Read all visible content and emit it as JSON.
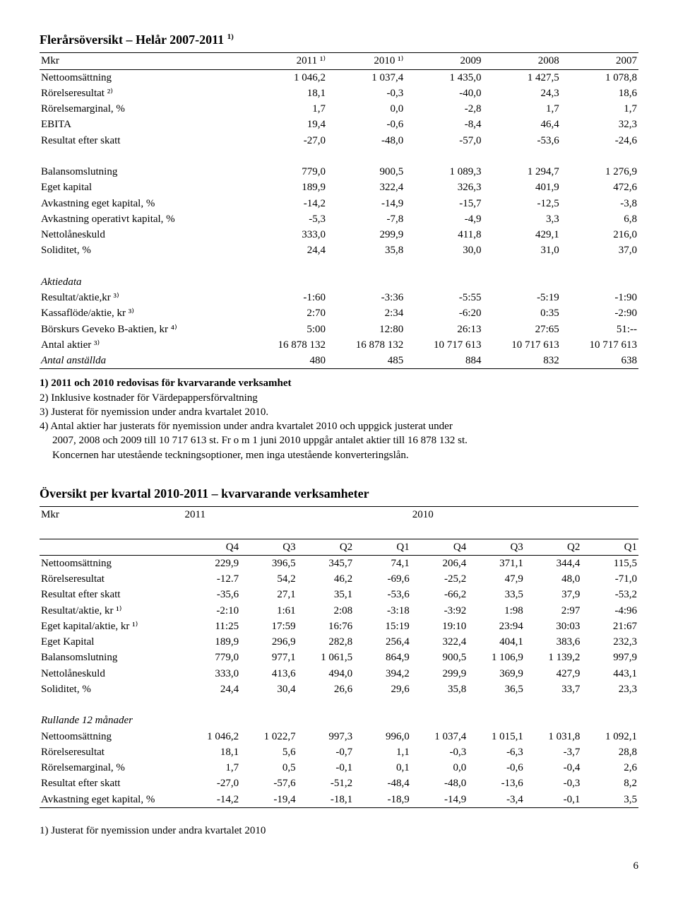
{
  "table1": {
    "title_pre": "Flerårsöversikt – Helår 2007-2011 ",
    "title_sup": "1)",
    "headers": [
      "Mkr",
      "2011 ¹⁾",
      "2010 ¹⁾",
      "2009",
      "2008",
      "2007"
    ],
    "block1": [
      [
        "Nettoomsättning",
        "1 046,2",
        "1 037,4",
        "1 435,0",
        "1 427,5",
        "1 078,8"
      ],
      [
        "Rörelseresultat ²⁾",
        "18,1",
        "-0,3",
        "-40,0",
        "24,3",
        "18,6"
      ],
      [
        "Rörelsemarginal, %",
        "1,7",
        "0,0",
        "-2,8",
        "1,7",
        "1,7"
      ],
      [
        "EBITA",
        "19,4",
        "-0,6",
        "-8,4",
        "46,4",
        "32,3"
      ],
      [
        "Resultat efter skatt",
        "-27,0",
        "-48,0",
        "-57,0",
        "-53,6",
        "-24,6"
      ]
    ],
    "block2": [
      [
        "Balansomslutning",
        "779,0",
        "900,5",
        "1 089,3",
        "1 294,7",
        "1 276,9"
      ],
      [
        "Eget kapital",
        "189,9",
        "322,4",
        "326,3",
        "401,9",
        "472,6"
      ],
      [
        "Avkastning eget kapital, %",
        "-14,2",
        "-14,9",
        "-15,7",
        "-12,5",
        "-3,8"
      ],
      [
        "Avkastning operativt kapital, %",
        "-5,3",
        "-7,8",
        "-4,9",
        "3,3",
        "6,8"
      ],
      [
        "Nettolåneskuld",
        "333,0",
        "299,9",
        "411,8",
        "429,1",
        "216,0"
      ],
      [
        "Soliditet, %",
        "24,4",
        "35,8",
        "30,0",
        "31,0",
        "37,0"
      ]
    ],
    "block3_title": "Aktiedata",
    "block3": [
      [
        "Resultat/aktie,kr ³⁾",
        "-1:60",
        "-3:36",
        "-5:55",
        "-5:19",
        "-1:90"
      ],
      [
        "Kassaflöde/aktie, kr ³⁾",
        "2:70",
        "2:34",
        "-6:20",
        "0:35",
        "-2:90"
      ],
      [
        "Börskurs Geveko B-aktien, kr ⁴⁾",
        "5:00",
        "12:80",
        "26:13",
        "27:65",
        "51:--"
      ],
      [
        "Antal aktier ³⁾",
        "16 878 132",
        "16 878 132",
        "10 717 613",
        "10 717 613",
        "10 717 613"
      ],
      [
        "Antal anställda",
        "480",
        "485",
        "884",
        "832",
        "638"
      ]
    ],
    "last_row_italic": true
  },
  "notes1": [
    "1) 2011 och 2010 redovisas för kvarvarande verksamhet",
    "2) Inklusive kostnader för Värdepappersförvaltning",
    "3) Justerat för nyemission under andra kvartalet 2010.",
    "4) Antal aktier har justerats för nyemission under andra kvartalet 2010 och uppgick justerat under"
  ],
  "notes1_indented": [
    "2007, 2008 och 2009 till 10 717 613 st.  Fr o m 1 juni 2010 uppgår antalet aktier till 16 878 132 st.",
    "Koncernen har utestående teckningsoptioner, men inga utestående konverteringslån."
  ],
  "table2": {
    "title": "Översikt per kvartal  2010-2011 – kvarvarande verksamheter",
    "top_headers": [
      "Mkr",
      "2011",
      "2010"
    ],
    "sub_headers": [
      "",
      "Q4",
      "Q3",
      "Q2",
      "Q1",
      "Q4",
      "Q3",
      "Q2",
      "Q1"
    ],
    "block1": [
      [
        "Nettoomsättning",
        "229,9",
        "396,5",
        "345,7",
        "74,1",
        "206,4",
        "371,1",
        "344,4",
        "115,5"
      ],
      [
        "Rörelseresultat",
        "-12.7",
        "54,2",
        "46,2",
        "-69,6",
        "-25,2",
        "47,9",
        "48,0",
        "-71,0"
      ],
      [
        "Resultat efter skatt",
        "-35,6",
        "27,1",
        "35,1",
        "-53,6",
        "-66,2",
        "33,5",
        "37,9",
        "-53,2"
      ],
      [
        "Resultat/aktie, kr ¹⁾",
        "-2:10",
        "1:61",
        "2:08",
        "-3:18",
        "-3:92",
        "1:98",
        "2:97",
        "-4:96"
      ],
      [
        "Eget kapital/aktie, kr ¹⁾",
        "11:25",
        "17:59",
        "16:76",
        "15:19",
        "19:10",
        "23:94",
        "30:03",
        "21:67"
      ],
      [
        "Eget Kapital",
        "189,9",
        "296,9",
        "282,8",
        "256,4",
        "322,4",
        "404,1",
        "383,6",
        "232,3"
      ],
      [
        "Balansomslutning",
        "779,0",
        "977,1",
        "1 061,5",
        "864,9",
        "900,5",
        "1 106,9",
        "1 139,2",
        "997,9"
      ],
      [
        "Nettolåneskuld",
        "333,0",
        "413,6",
        "494,0",
        "394,2",
        "299,9",
        "369,9",
        "427,9",
        "443,1"
      ],
      [
        "Soliditet, %",
        "24,4",
        "30,4",
        "26,6",
        "29,6",
        "35,8",
        "36,5",
        "33,7",
        "23,3"
      ]
    ],
    "block2_title": "Rullande 12 månader",
    "block2": [
      [
        "Nettoomsättning",
        "1 046,2",
        "1 022,7",
        "997,3",
        "996,0",
        "1 037,4",
        "1 015,1",
        "1 031,8",
        "1 092,1"
      ],
      [
        "Rörelseresultat",
        "18,1",
        "5,6",
        "-0,7",
        "1,1",
        "-0,3",
        "-6,3",
        "-3,7",
        "28,8"
      ],
      [
        "Rörelsemarginal, %",
        "1,7",
        "0,5",
        "-0,1",
        "0,1",
        "0,0",
        "-0,6",
        "-0,4",
        "2,6"
      ],
      [
        "Resultat efter skatt",
        "-27,0",
        "-57,6",
        "-51,2",
        "-48,4",
        "-48,0",
        "-13,6",
        "-0,3",
        "8,2"
      ],
      [
        "Avkastning eget kapital, %",
        "-14,2",
        "-19,4",
        "-18,1",
        "-18,9",
        "-14,9",
        "-3,4",
        "-0,1",
        "3,5"
      ]
    ]
  },
  "notes2": "1) Justerat för nyemission under andra kvartalet 2010",
  "page_number": "6"
}
